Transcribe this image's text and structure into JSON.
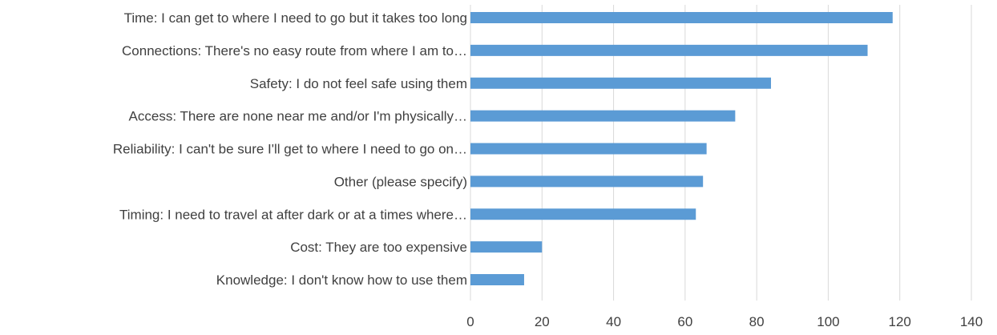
{
  "chart_data": {
    "type": "bar",
    "orientation": "horizontal",
    "title": "",
    "xlabel": "",
    "ylabel": "",
    "categories": [
      "Time: I can get to where I need to go but it takes too long",
      "Connections: There's no easy route from where I am to…",
      "Safety:  I do not feel safe using them",
      "Access: There are none near me  and/or I'm physically…",
      "Reliability: I can't be sure I'll get to where I need to go on…",
      "Other (please specify)",
      "Timing: I need to travel at after dark or at a times where…",
      "Cost: They are too expensive",
      "Knowledge: I don't know how to use them"
    ],
    "values": [
      118,
      111,
      84,
      74,
      66,
      65,
      63,
      20,
      15
    ],
    "xlim": [
      0,
      140
    ],
    "xticks": [
      "0",
      "20",
      "40",
      "60",
      "80",
      "100",
      "120",
      "140"
    ],
    "grid": true,
    "legend": "none",
    "bar_color": "#5b9bd5"
  }
}
